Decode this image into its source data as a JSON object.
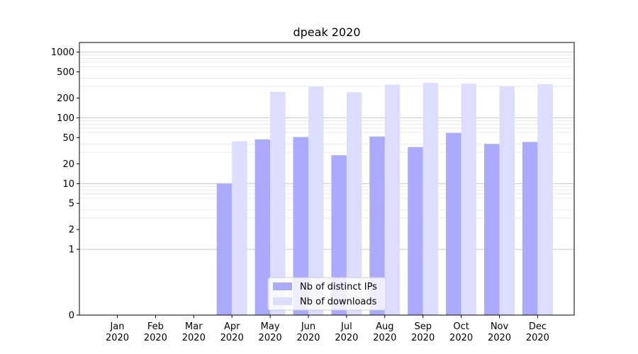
{
  "chart_data": {
    "type": "bar",
    "title": "dpeak 2020",
    "xlabel": "",
    "ylabel": "",
    "y_scale": "symlog",
    "ylim": [
      0,
      1400
    ],
    "y_ticks": [
      0,
      1,
      2,
      5,
      10,
      20,
      50,
      100,
      200,
      500,
      1000
    ],
    "y_tick_labels": [
      "0",
      "1",
      "2",
      "5",
      "10",
      "20",
      "50",
      "100",
      "200",
      "500",
      "1000"
    ],
    "grid": true,
    "legend_position": "bottom-center",
    "categories": [
      [
        "Jan",
        "2020"
      ],
      [
        "Feb",
        "2020"
      ],
      [
        "Mar",
        "2020"
      ],
      [
        "Apr",
        "2020"
      ],
      [
        "May",
        "2020"
      ],
      [
        "Jun",
        "2020"
      ],
      [
        "Jul",
        "2020"
      ],
      [
        "Aug",
        "2020"
      ],
      [
        "Sep",
        "2020"
      ],
      [
        "Oct",
        "2020"
      ],
      [
        "Nov",
        "2020"
      ],
      [
        "Dec",
        "2020"
      ]
    ],
    "series": [
      {
        "name": "Nb of distinct IPs",
        "color": "#aaaaff",
        "values": [
          0,
          0,
          0,
          10,
          47,
          51,
          27,
          52,
          36,
          59,
          40,
          43
        ]
      },
      {
        "name": "Nb of downloads",
        "color": "#ddddff",
        "values": [
          0,
          0,
          0,
          44,
          248,
          300,
          245,
          320,
          340,
          330,
          305,
          325
        ]
      }
    ]
  }
}
